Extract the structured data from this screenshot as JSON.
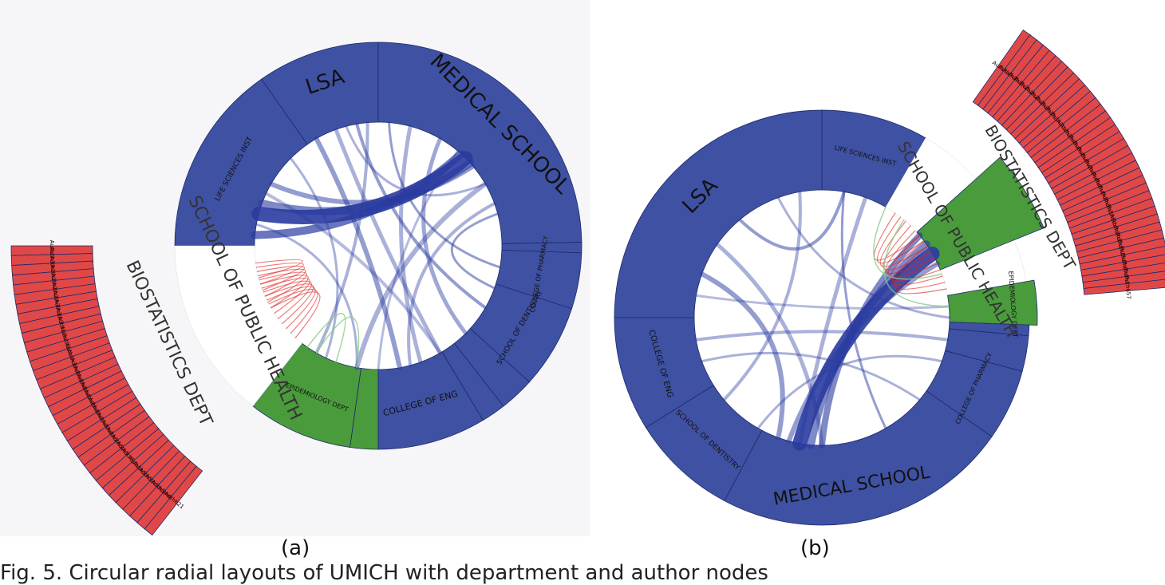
{
  "panel_a": {
    "caption": "(a)",
    "colors": {
      "blue_unit": "#3f51a3",
      "red_unit": "#e04848",
      "green_unit": "#4a9b3c",
      "link": "#2a3ba0",
      "red_link": "#e02020",
      "green_link": "#88cc88"
    },
    "schools": {
      "lsa": "LSA",
      "medical_school": "MEDICAL SCHOOL",
      "life_sciences": "LIFE SCIENCES INST",
      "college_pharmacy": "COLLEGE OF PHARMACY",
      "school_dentistry": "SCHOOL OF DENTISTRY",
      "college_eng": "COLLEGE OF ENG",
      "school_public_health": "SCHOOL OF PUBLIC HEALTH",
      "biostatistics": "BIOSTATISTICS DEPT",
      "epidemiology": "EPIDEMIOLOGY DEPT"
    },
    "authors": [
      "Auth13",
      "Auth138",
      "Auth182",
      "Auth240",
      "Auth266",
      "Auth289",
      "Auth305",
      "Auth317",
      "Auth331",
      "Auth342",
      "Auth37",
      "Auth354",
      "Auth36",
      "Auth382",
      "Auth400",
      "Auth412",
      "Auth416",
      "Auth428",
      "Auth441",
      "Auth455",
      "Auth467",
      "Auth479",
      "Auth491",
      "Auth503",
      "Auth515",
      "Auth527",
      "Auth539",
      "Auth55",
      "Auth561",
      "Auth573",
      "Auth585",
      "Auth597",
      "Auth609",
      "Auth621"
    ]
  },
  "panel_b": {
    "caption": "(b)",
    "schools": {
      "lsa": "LSA",
      "medical_school": "MEDICAL SCHOOL",
      "life_sciences": "LIFE SCIENCES INST",
      "college_eng": "COLLEGE OF ENG",
      "school_dentistry": "SCHOOL OF DENTISTRY",
      "college_pharmacy": "COLLEGE OF PHARMACY",
      "school_public_health": "SCHOOL OF PUBLIC HEALTH",
      "biostatistics": "BIOSTATISTICS DEPT",
      "epidemiology": "EPIDEMIOLOGY DEPT"
    },
    "authors": [
      "Auth37",
      "Auth13",
      "Auth138",
      "Auth182",
      "Auth240",
      "Auth266",
      "Auth289",
      "Auth305",
      "Auth317",
      "Auth331",
      "Auth342",
      "Auth354",
      "Auth36",
      "Auth382",
      "Auth400",
      "Auth412",
      "Auth416",
      "Auth428",
      "Auth441",
      "Auth455",
      "Auth467",
      "Auth479",
      "Auth491",
      "Auth503",
      "Auth515",
      "Auth527",
      "Auth539",
      "Auth55",
      "Auth561",
      "Auth573",
      "Auth585",
      "Auth597",
      "Auth609",
      "Auth621",
      "Auth633",
      "Auth645",
      "Auth657"
    ]
  },
  "figure_caption": "Fig. 5. Circular radial layouts of UMICH with department and author nodes"
}
